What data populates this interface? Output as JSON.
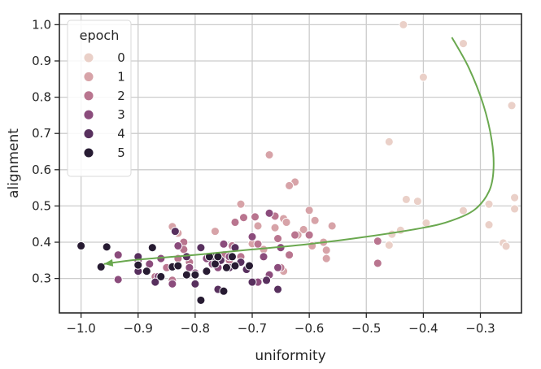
{
  "chart_data": {
    "type": "scatter",
    "title": "",
    "xlabel": "uniformity",
    "ylabel": "alignment",
    "xlim": [
      -1.038,
      -0.228
    ],
    "ylim": [
      0.205,
      1.03
    ],
    "xticks": [
      -1.0,
      -0.9,
      -0.8,
      -0.7,
      -0.6,
      -0.5,
      -0.4,
      -0.3
    ],
    "yticks": [
      0.3,
      0.4,
      0.5,
      0.6,
      0.7,
      0.8,
      0.9,
      1.0
    ],
    "xtick_labels": [
      "−1.0",
      "−0.9",
      "−0.8",
      "−0.7",
      "−0.6",
      "−0.5",
      "−0.4",
      "−0.3"
    ],
    "ytick_labels": [
      "0.3",
      "0.4",
      "0.5",
      "0.6",
      "0.7",
      "0.8",
      "0.9",
      "1.0"
    ],
    "grid": true,
    "legend": {
      "title": "epoch",
      "placement": "top-left",
      "entries": [
        {
          "label": "0",
          "color": "#ead0c8"
        },
        {
          "label": "1",
          "color": "#d7a3a8"
        },
        {
          "label": "2",
          "color": "#b9758f"
        },
        {
          "label": "3",
          "color": "#8b4c7c"
        },
        {
          "label": "4",
          "color": "#58305e"
        },
        {
          "label": "5",
          "color": "#271b32"
        }
      ]
    },
    "series": [
      {
        "epoch": 0,
        "points": [
          [
            -0.435,
            1.0
          ],
          [
            -0.33,
            0.948
          ],
          [
            -0.4,
            0.855
          ],
          [
            -0.245,
            0.777
          ],
          [
            -0.46,
            0.677
          ],
          [
            -0.24,
            0.523
          ],
          [
            -0.43,
            0.518
          ],
          [
            -0.41,
            0.513
          ],
          [
            -0.285,
            0.505
          ],
          [
            -0.33,
            0.487
          ],
          [
            -0.24,
            0.492
          ],
          [
            -0.395,
            0.453
          ],
          [
            -0.285,
            0.448
          ],
          [
            -0.44,
            0.433
          ],
          [
            -0.455,
            0.422
          ],
          [
            -0.26,
            0.398
          ],
          [
            -0.255,
            0.389
          ],
          [
            -0.46,
            0.392
          ]
        ]
      },
      {
        "epoch": 1,
        "points": [
          [
            -0.67,
            0.641
          ],
          [
            -0.625,
            0.566
          ],
          [
            -0.635,
            0.556
          ],
          [
            -0.72,
            0.505
          ],
          [
            -0.6,
            0.488
          ],
          [
            -0.645,
            0.465
          ],
          [
            -0.64,
            0.455
          ],
          [
            -0.59,
            0.46
          ],
          [
            -0.56,
            0.445
          ],
          [
            -0.61,
            0.435
          ],
          [
            -0.66,
            0.44
          ],
          [
            -0.69,
            0.445
          ],
          [
            -0.6,
            0.42
          ],
          [
            -0.62,
            0.42
          ],
          [
            -0.575,
            0.4
          ],
          [
            -0.57,
            0.378
          ],
          [
            -0.57,
            0.355
          ],
          [
            -0.595,
            0.39
          ],
          [
            -0.645,
            0.32
          ],
          [
            -0.84,
            0.443
          ],
          [
            -0.83,
            0.425
          ],
          [
            -0.765,
            0.43
          ],
          [
            -0.7,
            0.396
          ],
          [
            -0.68,
            0.38
          ]
        ]
      },
      {
        "epoch": 2,
        "points": [
          [
            -0.73,
            0.455
          ],
          [
            -0.715,
            0.468
          ],
          [
            -0.695,
            0.47
          ],
          [
            -0.66,
            0.472
          ],
          [
            -0.625,
            0.42
          ],
          [
            -0.655,
            0.41
          ],
          [
            -0.69,
            0.395
          ],
          [
            -0.735,
            0.39
          ],
          [
            -0.75,
            0.365
          ],
          [
            -0.72,
            0.36
          ],
          [
            -0.76,
            0.36
          ],
          [
            -0.74,
            0.35
          ],
          [
            -0.82,
            0.4
          ],
          [
            -0.82,
            0.38
          ],
          [
            -0.83,
            0.355
          ],
          [
            -0.81,
            0.345
          ],
          [
            -0.87,
            0.305
          ],
          [
            -0.84,
            0.295
          ],
          [
            -0.635,
            0.365
          ],
          [
            -0.65,
            0.33
          ],
          [
            -0.48,
            0.403
          ],
          [
            -0.48,
            0.342
          ],
          [
            -0.6,
            0.42
          ],
          [
            -0.85,
            0.33
          ]
        ]
      },
      {
        "epoch": 3,
        "points": [
          [
            -0.67,
            0.48
          ],
          [
            -0.7,
            0.415
          ],
          [
            -0.65,
            0.385
          ],
          [
            -0.68,
            0.36
          ],
          [
            -0.75,
            0.395
          ],
          [
            -0.74,
            0.36
          ],
          [
            -0.86,
            0.355
          ],
          [
            -0.9,
            0.35
          ],
          [
            -0.935,
            0.365
          ],
          [
            -0.935,
            0.297
          ],
          [
            -0.865,
            0.305
          ],
          [
            -0.84,
            0.285
          ],
          [
            -0.81,
            0.33
          ],
          [
            -0.78,
            0.355
          ],
          [
            -0.77,
            0.34
          ],
          [
            -0.76,
            0.33
          ],
          [
            -0.69,
            0.29
          ],
          [
            -0.655,
            0.33
          ],
          [
            -0.67,
            0.31
          ],
          [
            -0.8,
            0.315
          ],
          [
            -0.83,
            0.39
          ],
          [
            -0.88,
            0.34
          ]
        ]
      },
      {
        "epoch": 4,
        "points": [
          [
            -0.79,
            0.385
          ],
          [
            -0.73,
            0.385
          ],
          [
            -0.77,
            0.36
          ],
          [
            -0.755,
            0.35
          ],
          [
            -0.72,
            0.345
          ],
          [
            -0.71,
            0.325
          ],
          [
            -0.675,
            0.295
          ],
          [
            -0.655,
            0.27
          ],
          [
            -0.8,
            0.285
          ],
          [
            -0.76,
            0.27
          ],
          [
            -0.87,
            0.29
          ],
          [
            -0.9,
            0.32
          ],
          [
            -0.835,
            0.43
          ],
          [
            -0.815,
            0.36
          ],
          [
            -0.7,
            0.29
          ],
          [
            -0.74,
            0.33
          ],
          [
            -0.9,
            0.36
          ]
        ]
      },
      {
        "epoch": 5,
        "points": [
          [
            -1.0,
            0.39
          ],
          [
            -0.955,
            0.387
          ],
          [
            -0.965,
            0.332
          ],
          [
            -0.9,
            0.337
          ],
          [
            -0.875,
            0.385
          ],
          [
            -0.885,
            0.32
          ],
          [
            -0.84,
            0.332
          ],
          [
            -0.83,
            0.335
          ],
          [
            -0.815,
            0.31
          ],
          [
            -0.79,
            0.24
          ],
          [
            -0.78,
            0.32
          ],
          [
            -0.775,
            0.36
          ],
          [
            -0.765,
            0.34
          ],
          [
            -0.75,
            0.265
          ],
          [
            -0.745,
            0.33
          ],
          [
            -0.735,
            0.36
          ],
          [
            -0.73,
            0.335
          ],
          [
            -0.705,
            0.335
          ],
          [
            -0.86,
            0.305
          ],
          [
            -0.8,
            0.31
          ],
          [
            -0.76,
            0.36
          ]
        ]
      }
    ],
    "trend_curve": {
      "color": "#6aa84f",
      "arrow_direction": "to-left",
      "points": [
        [
          -0.35,
          0.965
        ],
        [
          -0.32,
          0.88
        ],
        [
          -0.295,
          0.78
        ],
        [
          -0.28,
          0.68
        ],
        [
          -0.277,
          0.6
        ],
        [
          -0.285,
          0.54
        ],
        [
          -0.31,
          0.49
        ],
        [
          -0.35,
          0.46
        ],
        [
          -0.4,
          0.44
        ],
        [
          -0.5,
          0.415
        ],
        [
          -0.6,
          0.395
        ],
        [
          -0.7,
          0.38
        ],
        [
          -0.8,
          0.365
        ],
        [
          -0.9,
          0.352
        ],
        [
          -0.96,
          0.34
        ]
      ]
    }
  }
}
